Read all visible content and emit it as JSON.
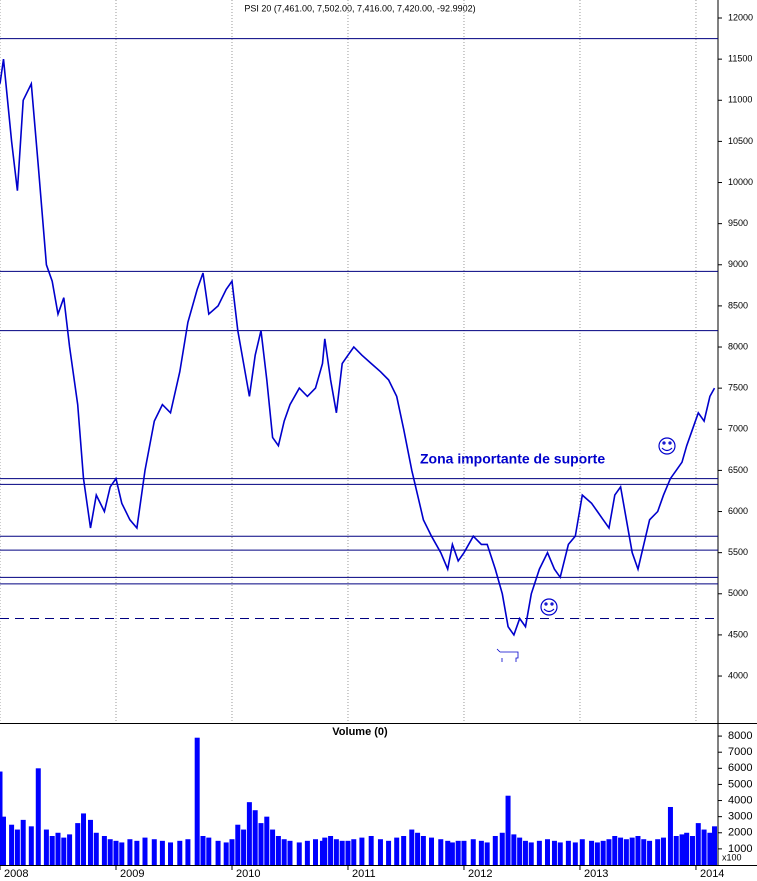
{
  "chart_data": [
    {
      "type": "line",
      "title": "PSI 20 (7,461.00, 7,502.00, 7,416.00, 7,420.00, -92.9902)",
      "annotations": [
        "Zona importante de suporte"
      ],
      "xlim": [
        2008,
        2014.19
      ],
      "xticks": [
        2008,
        2009,
        2010,
        2011,
        2012,
        2013,
        2014
      ],
      "ylim": [
        3429,
        12219
      ],
      "yticks": [
        4000,
        4500,
        5000,
        5500,
        6000,
        6500,
        7000,
        7500,
        8000,
        8500,
        9000,
        9500,
        10000,
        10500,
        11000,
        11500,
        12000
      ],
      "hlines": [
        11750,
        8920,
        8200,
        6400,
        6330,
        5700,
        5530,
        5200,
        5120
      ],
      "dashed_hlines": [
        4700
      ],
      "hline_color": "#000080",
      "grid": true,
      "x": [
        2008.0,
        2008.03,
        2008.1,
        2008.15,
        2008.2,
        2008.27,
        2008.33,
        2008.4,
        2008.45,
        2008.5,
        2008.55,
        2008.6,
        2008.67,
        2008.72,
        2008.78,
        2008.83,
        2008.9,
        2008.95,
        2009.0,
        2009.05,
        2009.12,
        2009.18,
        2009.25,
        2009.33,
        2009.4,
        2009.47,
        2009.55,
        2009.62,
        2009.7,
        2009.75,
        2009.8,
        2009.88,
        2009.95,
        2010.0,
        2010.05,
        2010.1,
        2010.15,
        2010.2,
        2010.25,
        2010.3,
        2010.35,
        2010.4,
        2010.45,
        2010.5,
        2010.58,
        2010.65,
        2010.72,
        2010.78,
        2010.8,
        2010.85,
        2010.9,
        2010.95,
        2011.0,
        2011.05,
        2011.12,
        2011.2,
        2011.28,
        2011.35,
        2011.42,
        2011.48,
        2011.55,
        2011.6,
        2011.65,
        2011.72,
        2011.8,
        2011.86,
        2011.9,
        2011.95,
        2012.0,
        2012.08,
        2012.15,
        2012.2,
        2012.27,
        2012.33,
        2012.38,
        2012.43,
        2012.48,
        2012.53,
        2012.58,
        2012.65,
        2012.72,
        2012.78,
        2012.83,
        2012.9,
        2012.96,
        2013.02,
        2013.1,
        2013.15,
        2013.2,
        2013.25,
        2013.3,
        2013.35,
        2013.4,
        2013.45,
        2013.5,
        2013.55,
        2013.6,
        2013.67,
        2013.72,
        2013.78,
        2013.83,
        2013.88,
        2013.92,
        2013.97,
        2014.02,
        2014.07,
        2014.12,
        2014.16
      ],
      "series": [
        {
          "color": "#0000cc",
          "values": [
            11200,
            11500,
            10500,
            9900,
            11000,
            11200,
            10200,
            9000,
            8800,
            8400,
            8600,
            8000,
            7300,
            6400,
            5800,
            6200,
            6000,
            6300,
            6400,
            6100,
            5900,
            5800,
            6500,
            7100,
            7300,
            7200,
            7700,
            8300,
            8700,
            8900,
            8400,
            8500,
            8700,
            8800,
            8200,
            7800,
            7400,
            7900,
            8200,
            7600,
            6900,
            6800,
            7100,
            7300,
            7500,
            7400,
            7500,
            7800,
            8100,
            7600,
            7200,
            7800,
            7900,
            8000,
            7900,
            7800,
            7700,
            7600,
            7400,
            7000,
            6500,
            6200,
            5900,
            5700,
            5500,
            5300,
            5600,
            5400,
            5500,
            5700,
            5600,
            5600,
            5300,
            5000,
            4600,
            4500,
            4700,
            4600,
            5000,
            5300,
            5500,
            5300,
            5200,
            5600,
            5700,
            6200,
            6100,
            6000,
            5900,
            5800,
            6200,
            6300,
            5900,
            5500,
            5300,
            5600,
            5900,
            6000,
            6200,
            6400,
            6500,
            6600,
            6800,
            7000,
            7200,
            7100,
            7400,
            7500
          ]
        }
      ]
    },
    {
      "type": "bar",
      "title": "Volume (0)",
      "annotations": [
        "x100"
      ],
      "xlim": [
        2008,
        2014.19
      ],
      "xticks": [
        2008,
        2009,
        2010,
        2011,
        2012,
        2013,
        2014
      ],
      "ylim": [
        0,
        8750
      ],
      "yticks": [
        1000,
        2000,
        3000,
        4000,
        5000,
        6000,
        7000,
        8000
      ],
      "x": [
        2008.0,
        2008.03,
        2008.1,
        2008.15,
        2008.2,
        2008.27,
        2008.33,
        2008.4,
        2008.45,
        2008.5,
        2008.55,
        2008.6,
        2008.67,
        2008.72,
        2008.78,
        2008.83,
        2008.9,
        2008.95,
        2009.0,
        2009.05,
        2009.12,
        2009.18,
        2009.25,
        2009.33,
        2009.4,
        2009.47,
        2009.55,
        2009.62,
        2009.7,
        2009.75,
        2009.8,
        2009.88,
        2009.95,
        2010.0,
        2010.05,
        2010.1,
        2010.15,
        2010.2,
        2010.25,
        2010.3,
        2010.35,
        2010.4,
        2010.45,
        2010.5,
        2010.58,
        2010.65,
        2010.72,
        2010.78,
        2010.8,
        2010.85,
        2010.9,
        2010.95,
        2011.0,
        2011.05,
        2011.12,
        2011.2,
        2011.28,
        2011.35,
        2011.42,
        2011.48,
        2011.55,
        2011.6,
        2011.65,
        2011.72,
        2011.8,
        2011.86,
        2011.9,
        2011.95,
        2012.0,
        2012.08,
        2012.15,
        2012.2,
        2012.27,
        2012.33,
        2012.38,
        2012.43,
        2012.48,
        2012.53,
        2012.58,
        2012.65,
        2012.72,
        2012.78,
        2012.83,
        2012.9,
        2012.96,
        2013.02,
        2013.1,
        2013.15,
        2013.2,
        2013.25,
        2013.3,
        2013.35,
        2013.4,
        2013.45,
        2013.5,
        2013.55,
        2013.6,
        2013.67,
        2013.72,
        2013.78,
        2013.83,
        2013.88,
        2013.92,
        2013.97,
        2014.02,
        2014.07,
        2014.12,
        2014.16
      ],
      "series": [
        {
          "color": "#0000ff",
          "values": [
            5800,
            3000,
            2500,
            2200,
            2800,
            2400,
            6000,
            2200,
            1800,
            2000,
            1700,
            1900,
            2600,
            3200,
            2800,
            2000,
            1800,
            1600,
            1500,
            1400,
            1600,
            1500,
            1700,
            1600,
            1500,
            1400,
            1500,
            1600,
            7900,
            1800,
            1700,
            1500,
            1400,
            1600,
            2500,
            2200,
            3900,
            3400,
            2600,
            3000,
            2200,
            1800,
            1600,
            1500,
            1400,
            1500,
            1600,
            1500,
            1700,
            1800,
            1600,
            1500,
            1500,
            1600,
            1700,
            1800,
            1600,
            1500,
            1700,
            1800,
            2200,
            2000,
            1800,
            1700,
            1600,
            1500,
            1400,
            1500,
            1500,
            1600,
            1500,
            1400,
            1800,
            2000,
            4300,
            1900,
            1700,
            1500,
            1400,
            1500,
            1600,
            1500,
            1400,
            1500,
            1400,
            1600,
            1500,
            1400,
            1500,
            1600,
            1800,
            1700,
            1600,
            1700,
            1800,
            1600,
            1500,
            1600,
            1700,
            3600,
            1800,
            1900,
            2000,
            1800,
            2600,
            2200,
            2000,
            2400
          ]
        }
      ]
    }
  ]
}
